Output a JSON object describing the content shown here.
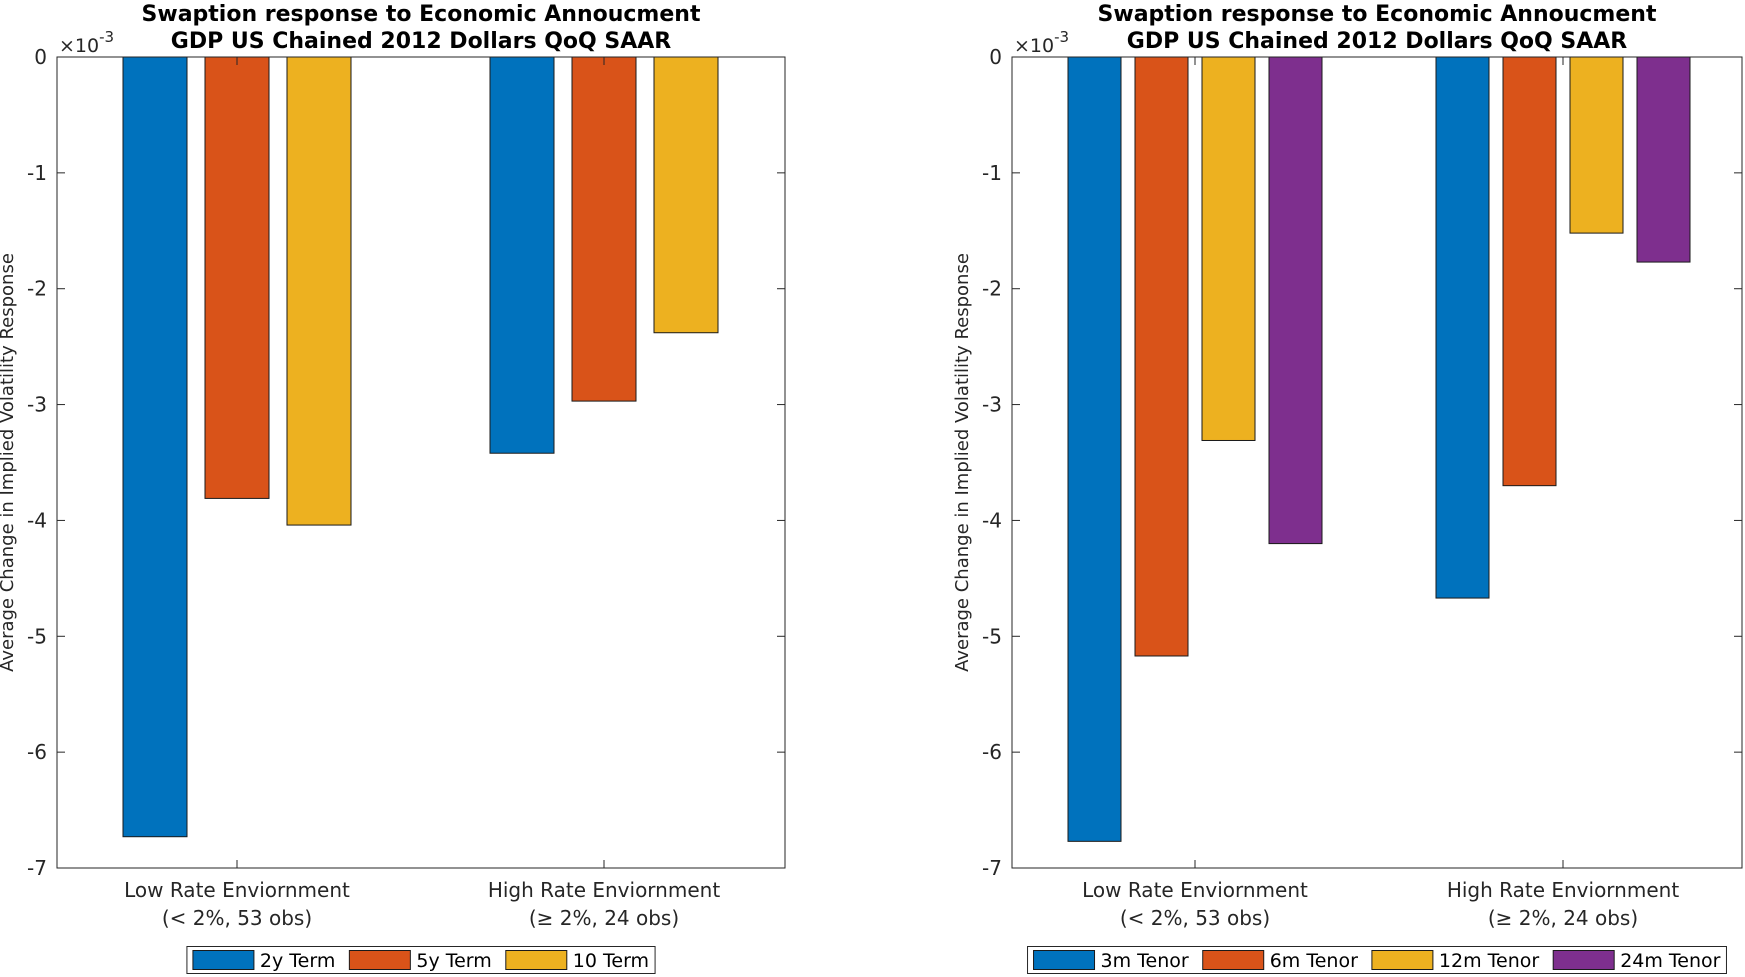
{
  "chart_data": [
    {
      "type": "bar",
      "title": [
        "Swaption response to Economic Annoucment",
        "GDP US Chained 2012 Dollars QoQ SAAR"
      ],
      "ylabel": "Average Change in Implied Volatility Response",
      "yexponent": "×10",
      "yexponent_power": "-3",
      "ylim": [
        -7,
        0
      ],
      "yticks": [
        0,
        -1,
        -2,
        -3,
        -4,
        -5,
        -6,
        -7
      ],
      "ytick_labels": [
        "0",
        "-1",
        "-2",
        "-3",
        "-4",
        "-5",
        "-6",
        "-7"
      ],
      "categories": [
        [
          "Low Rate Enviornment",
          "(< 2%, 53 obs)"
        ],
        [
          "High Rate Enviornment",
          "(≥ 2%, 24 obs)"
        ]
      ],
      "series": [
        {
          "name": "2y Term",
          "color": "#0072BD",
          "values": [
            -6.73,
            -3.42
          ]
        },
        {
          "name": "5y Term",
          "color": "#D95319",
          "values": [
            -3.81,
            -2.97
          ]
        },
        {
          "name": "10 Term",
          "color": "#EDB120",
          "values": [
            -4.04,
            -2.38
          ]
        }
      ],
      "legend_position": "bottom",
      "grid": false
    },
    {
      "type": "bar",
      "title": [
        "Swaption response to Economic Annoucment",
        "GDP US Chained 2012 Dollars QoQ SAAR"
      ],
      "ylabel": "Average Change in Implied Volatility Response",
      "yexponent": "×10",
      "yexponent_power": "-3",
      "ylim": [
        -7,
        0
      ],
      "yticks": [
        0,
        -1,
        -2,
        -3,
        -4,
        -5,
        -6,
        -7
      ],
      "ytick_labels": [
        "0",
        "-1",
        "-2",
        "-3",
        "-4",
        "-5",
        "-6",
        "-7"
      ],
      "categories": [
        [
          "Low Rate Enviornment",
          "(< 2%, 53 obs)"
        ],
        [
          "High Rate Enviornment",
          "(≥ 2%, 24 obs)"
        ]
      ],
      "series": [
        {
          "name": "3m Tenor",
          "color": "#0072BD",
          "values": [
            -6.77,
            -4.67
          ]
        },
        {
          "name": "6m Tenor",
          "color": "#D95319",
          "values": [
            -5.17,
            -3.7
          ]
        },
        {
          "name": "12m Tenor",
          "color": "#EDB120",
          "values": [
            -3.31,
            -1.52
          ]
        },
        {
          "name": "24m Tenor",
          "color": "#7E2F8E",
          "values": [
            -4.2,
            -1.77
          ]
        }
      ],
      "legend_position": "bottom",
      "grid": false
    }
  ]
}
